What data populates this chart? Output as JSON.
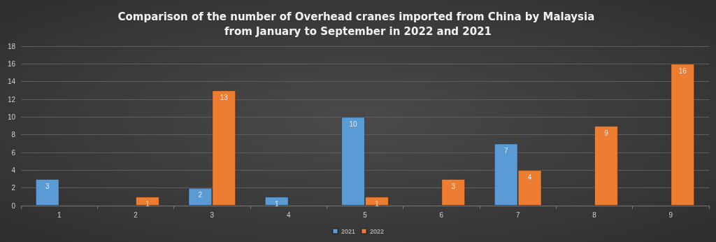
{
  "chart_data": {
    "type": "bar",
    "title": "Comparison of the number of Overhead cranes imported from China by Malaysia from January to September in 2022 and 2021",
    "categories": [
      "1",
      "2",
      "3",
      "4",
      "5",
      "6",
      "7",
      "8",
      "9"
    ],
    "series": [
      {
        "name": "2021",
        "color": "#5b9bd5",
        "values": [
          3,
          null,
          2,
          1,
          10,
          null,
          7,
          null,
          null
        ]
      },
      {
        "name": "2022",
        "color": "#ed7d31",
        "values": [
          null,
          1,
          13,
          null,
          1,
          3,
          4,
          9,
          16
        ]
      }
    ],
    "ylim": [
      0,
      18
    ],
    "yticks": [
      0,
      2,
      4,
      6,
      8,
      10,
      12,
      14,
      16,
      18
    ],
    "grid": "y",
    "legend": "bottom",
    "data_labels": true
  }
}
